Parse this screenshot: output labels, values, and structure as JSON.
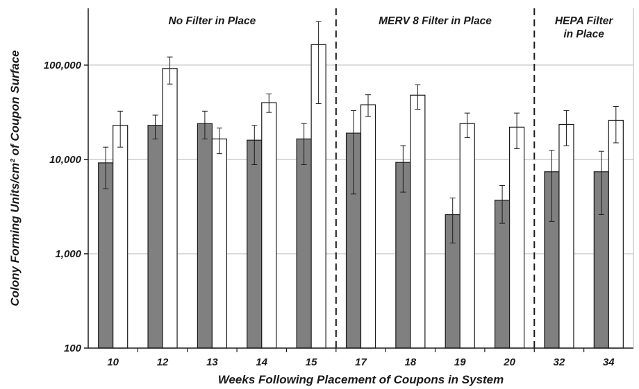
{
  "chart_data": {
    "type": "bar",
    "title": "",
    "xlabel": "Weeks Following Placement of Coupons in System",
    "ylabel": "Colony Forming Units/cm² of Coupon Surface",
    "yscale": "log",
    "ylim": [
      100,
      400000
    ],
    "ytick_values": [
      100,
      1000,
      10000,
      100000
    ],
    "ytick_labels": [
      "100",
      "1,000",
      "10,000",
      "100,000"
    ],
    "grid": "horizontal",
    "legend": "none",
    "categories": [
      "10",
      "12",
      "13",
      "14",
      "15",
      "17",
      "18",
      "19",
      "20",
      "32",
      "34"
    ],
    "series": [
      {
        "color": "#808080",
        "values": [
          9200,
          23000,
          24000,
          16000,
          16500,
          19000,
          9300,
          2600,
          3700,
          7400,
          7400
        ],
        "error_low": [
          4900,
          16500,
          16500,
          8800,
          8800,
          4300,
          4500,
          1300,
          2100,
          2200,
          2600
        ],
        "error_high": [
          13500,
          29500,
          32500,
          23000,
          24000,
          33000,
          14000,
          3900,
          5300,
          12500,
          12200
        ]
      },
      {
        "color": "#ffffff",
        "values": [
          23000,
          92000,
          16500,
          40000,
          165000,
          38000,
          48000,
          24000,
          22000,
          23500,
          26000
        ],
        "error_low": [
          13500,
          63000,
          11500,
          31500,
          39000,
          28500,
          34000,
          17000,
          13000,
          14000,
          15000
        ],
        "error_high": [
          32500,
          122000,
          21500,
          49500,
          290000,
          48500,
          62000,
          31000,
          31000,
          33000,
          36500
        ]
      }
    ],
    "sections": [
      {
        "label_lines": [
          "No Filter in Place"
        ],
        "categories": [
          "10",
          "12",
          "13",
          "14",
          "15"
        ]
      },
      {
        "label_lines": [
          "MERV 8 Filter in Place"
        ],
        "categories": [
          "17",
          "18",
          "19",
          "20"
        ]
      },
      {
        "label_lines": [
          "HEPA Filter",
          "in Place"
        ],
        "categories": [
          "32",
          "34"
        ]
      }
    ]
  }
}
